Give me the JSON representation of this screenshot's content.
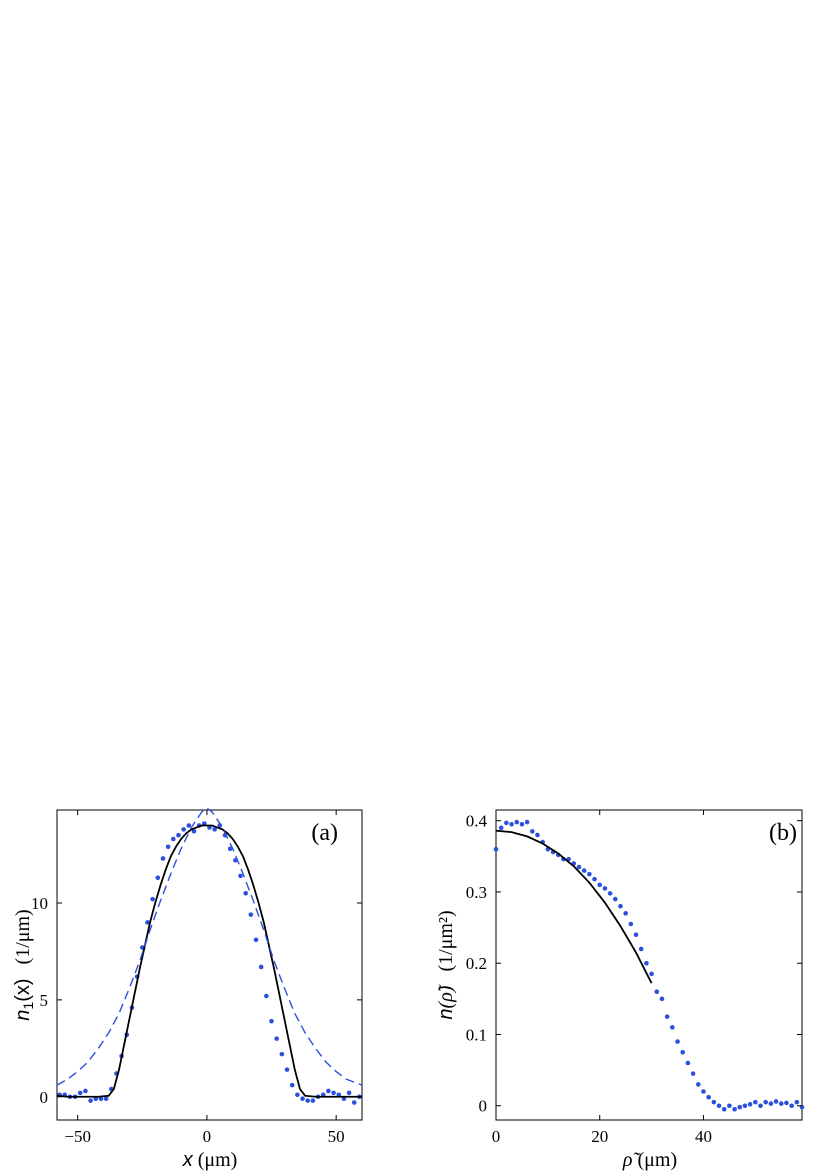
{
  "chart_data": [
    {
      "type": "line",
      "panel_label": "(a)",
      "xlabel_var": "x",
      "xlabel_unit": " (μm)",
      "ylabel_main": "n",
      "ylabel_sub": "1",
      "ylabel_arg": "(x)",
      "ylabel_unit": "(1/μm)",
      "xlim": [
        -58,
        60
      ],
      "ylim": [
        -1.2,
        14.8
      ],
      "xticks": [
        -50,
        0,
        50
      ],
      "yticks": [
        0,
        5,
        10
      ],
      "grid": false,
      "series": [
        {
          "style": "points",
          "color": "#2b50e0",
          "x": [
            -57,
            -55,
            -53,
            -51,
            -49,
            -47,
            -45,
            -43,
            -41,
            -39,
            -37,
            -35,
            -33,
            -31,
            -29,
            -27,
            -25,
            -23,
            -21,
            -19,
            -17,
            -15,
            -13,
            -11,
            -9,
            -7,
            -5,
            -3,
            -1,
            1,
            3,
            5,
            7,
            9,
            11,
            13,
            15,
            17,
            19,
            21,
            23,
            25,
            27,
            29,
            31,
            33,
            35,
            37,
            39,
            41,
            43,
            45,
            47,
            49,
            51,
            53,
            55,
            57,
            59
          ],
          "y": [
            0.1,
            0.1,
            0.0,
            0.0,
            0.2,
            0.3,
            -0.2,
            -0.1,
            -0.1,
            -0.1,
            0.4,
            1.2,
            2.1,
            3.2,
            4.6,
            6.2,
            7.7,
            9.0,
            10.2,
            11.3,
            12.3,
            12.9,
            13.3,
            13.5,
            13.8,
            14.0,
            13.7,
            14.0,
            14.1,
            13.9,
            13.8,
            14.0,
            13.5,
            12.8,
            12.2,
            11.4,
            10.5,
            9.4,
            8.1,
            6.7,
            5.2,
            3.9,
            3.0,
            2.2,
            1.4,
            0.6,
            0.1,
            -0.1,
            -0.2,
            -0.2,
            0.0,
            0.1,
            0.3,
            0.2,
            0.1,
            -0.1,
            0.2,
            -0.3,
            0.0
          ]
        },
        {
          "style": "solid",
          "color": "#000000",
          "x": [
            -58,
            -54,
            -50,
            -46,
            -42,
            -38,
            -36,
            -34,
            -32,
            -30,
            -28,
            -26,
            -24,
            -22,
            -20,
            -18,
            -16,
            -14,
            -12,
            -10,
            -8,
            -6,
            -4,
            -2,
            0,
            2,
            4,
            6,
            8,
            10,
            12,
            14,
            16,
            18,
            20,
            22,
            24,
            26,
            28,
            30,
            32,
            34,
            36,
            38,
            42,
            46,
            50,
            54,
            60
          ],
          "y": [
            0.05,
            0.0,
            0.0,
            0.0,
            0.0,
            0.05,
            0.4,
            1.4,
            2.7,
            4.0,
            5.3,
            6.6,
            7.8,
            9.0,
            10.0,
            10.9,
            11.7,
            12.4,
            12.9,
            13.3,
            13.6,
            13.8,
            13.9,
            14.0,
            14.0,
            14.0,
            13.9,
            13.8,
            13.6,
            13.3,
            12.9,
            12.4,
            11.7,
            10.9,
            10.0,
            9.0,
            7.8,
            6.6,
            5.3,
            4.0,
            2.7,
            1.4,
            0.4,
            0.05,
            0.0,
            0.0,
            0.0,
            0.0,
            0.0
          ]
        },
        {
          "style": "dashed",
          "color": "#2b50e0",
          "x": [
            -58,
            -54,
            -50,
            -46,
            -42,
            -38,
            -34,
            -30,
            -26,
            -22,
            -18,
            -14,
            -10,
            -6,
            -4,
            -2,
            0,
            2,
            4,
            6,
            10,
            14,
            18,
            22,
            26,
            30,
            34,
            38,
            42,
            46,
            50,
            54,
            60
          ],
          "y": [
            0.6,
            0.9,
            1.3,
            1.8,
            2.5,
            3.3,
            4.3,
            5.6,
            7.0,
            8.6,
            10.1,
            11.5,
            12.8,
            13.9,
            14.3,
            14.7,
            14.9,
            14.7,
            14.3,
            13.9,
            12.8,
            11.5,
            10.1,
            8.6,
            7.0,
            5.6,
            4.3,
            3.3,
            2.5,
            1.8,
            1.3,
            0.9,
            0.6
          ]
        }
      ]
    },
    {
      "type": "line",
      "panel_label": "(b)",
      "xlabel_var": "ρ̃",
      "xlabel_unit": " (μm)",
      "ylabel_main": "n",
      "ylabel_arg": "(ρ̃)",
      "ylabel_unit": "(1/μm²)",
      "xlim": [
        0,
        59
      ],
      "ylim": [
        -0.02,
        0.415
      ],
      "xticks": [
        0,
        20,
        40
      ],
      "yticks": [
        0,
        0.1,
        0.2,
        0.3,
        0.4
      ],
      "grid": false,
      "series": [
        {
          "style": "points",
          "color": "#2b50e0",
          "x": [
            0,
            1,
            2,
            3,
            4,
            5,
            6,
            7,
            8,
            9,
            10,
            11,
            12,
            13,
            14,
            15,
            16,
            17,
            18,
            19,
            20,
            21,
            22,
            23,
            24,
            25,
            26,
            27,
            28,
            29,
            30,
            31,
            32,
            33,
            34,
            35,
            36,
            37,
            38,
            39,
            40,
            41,
            42,
            43,
            44,
            45,
            46,
            47,
            48,
            49,
            50,
            51,
            52,
            53,
            54,
            55,
            56,
            57,
            58,
            59
          ],
          "y": [
            0.36,
            0.39,
            0.397,
            0.395,
            0.398,
            0.395,
            0.398,
            0.385,
            0.38,
            0.37,
            0.36,
            0.356,
            0.352,
            0.346,
            0.346,
            0.34,
            0.335,
            0.33,
            0.325,
            0.318,
            0.31,
            0.305,
            0.298,
            0.29,
            0.28,
            0.27,
            0.255,
            0.24,
            0.22,
            0.2,
            0.185,
            0.16,
            0.15,
            0.125,
            0.11,
            0.09,
            0.075,
            0.06,
            0.045,
            0.03,
            0.02,
            0.012,
            0.005,
            0.0,
            -0.005,
            0.0,
            -0.005,
            -0.002,
            0.0,
            0.002,
            0.005,
            0.0,
            0.005,
            0.003,
            0.006,
            0.003,
            0.004,
            0.0,
            0.005,
            -0.002
          ]
        },
        {
          "style": "solid",
          "color": "#000000",
          "x": [
            0,
            3,
            6,
            9,
            12,
            15,
            18,
            21,
            24,
            27,
            30
          ],
          "y": [
            0.386,
            0.384,
            0.378,
            0.368,
            0.354,
            0.336,
            0.313,
            0.285,
            0.252,
            0.215,
            0.172
          ]
        }
      ]
    }
  ]
}
